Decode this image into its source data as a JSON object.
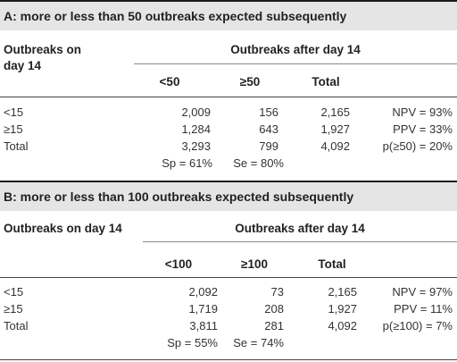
{
  "tables": [
    {
      "title": "A: more or less than 50 outbreaks expected subsequently",
      "row_header_1": "Outbreaks on",
      "row_header_2": "day 14",
      "col_group": "Outbreaks after day 14",
      "col_lt": "<50",
      "col_ge": "≥50",
      "col_total": "Total",
      "rows": [
        {
          "label": "<15",
          "lt": "2,009",
          "ge": "156",
          "total": "2,165",
          "stat": "NPV = 93%"
        },
        {
          "label": "≥15",
          "lt": "1,284",
          "ge": "643",
          "total": "1,927",
          "stat": "PPV = 33%"
        },
        {
          "label": "Total",
          "lt": "3,293",
          "ge": "799",
          "total": "4,092",
          "stat": "p(≥50) = 20%"
        }
      ],
      "sp": "Sp = 61%",
      "se": "Se = 80%"
    },
    {
      "title": "B: more or less than 100 outbreaks expected subsequently",
      "row_header_1": "Outbreaks on day 14",
      "row_header_2": "",
      "col_group": "Outbreaks after day 14",
      "col_lt": "<100",
      "col_ge": "≥100",
      "col_total": "Total",
      "rows": [
        {
          "label": "<15",
          "lt": "2,092",
          "ge": "73",
          "total": "2,165",
          "stat": "NPV = 97%"
        },
        {
          "label": "≥15",
          "lt": "1,719",
          "ge": "208",
          "total": "1,927",
          "stat": "PPV = 11%"
        },
        {
          "label": "Total",
          "lt": "3,811",
          "ge": "281",
          "total": "4,092",
          "stat": "p(≥100) = 7%"
        }
      ],
      "sp": "Sp = 55%",
      "se": "Se = 74%"
    }
  ]
}
